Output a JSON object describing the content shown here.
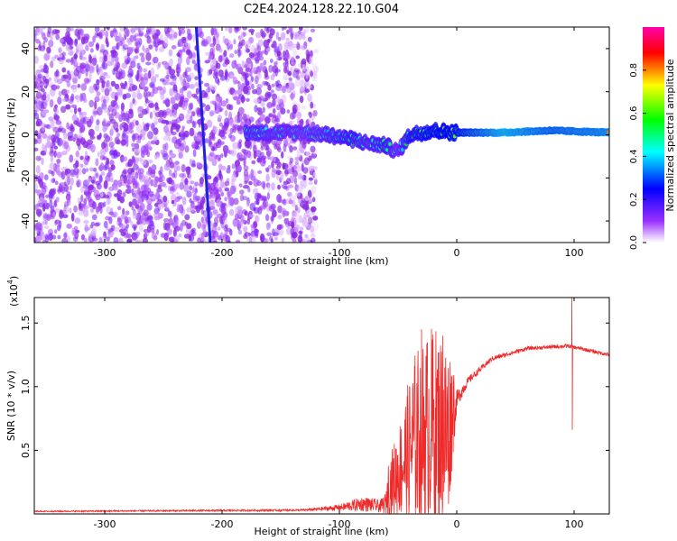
{
  "title": "C2E4.2024.128.22.10.G04",
  "chart_data": [
    {
      "type": "heatmap",
      "xlabel": "Height of straight line (km)",
      "ylabel": "Frequency (Hz)",
      "xlim": [
        -360,
        130
      ],
      "ylim": [
        -50,
        50
      ],
      "xticks": [
        -300,
        -200,
        -100,
        0,
        100
      ],
      "xtick_labels": [
        "-300",
        "-200",
        "-100",
        "0",
        "100"
      ],
      "yticks": [
        -40,
        -20,
        0,
        20,
        40
      ],
      "ytick_labels": [
        "-40",
        "-20",
        "0",
        "20",
        "40"
      ],
      "colorbar": {
        "label": "Normalized spectral amplitude",
        "range": [
          0,
          1
        ],
        "ticks": [
          0.0,
          0.2,
          0.4,
          0.6,
          0.8
        ],
        "tick_labels": [
          "0.0",
          "0.2",
          "0.4",
          "0.6",
          "0.8"
        ],
        "colors": [
          "#ffffff",
          "#9b30ff",
          "#0000ff",
          "#00ffff",
          "#00ff00",
          "#ffff00",
          "#ff0000",
          "#ff00aa"
        ]
      },
      "noise_region": {
        "x": [
          -360,
          -120
        ],
        "y": [
          -50,
          50
        ],
        "level": 0.12
      },
      "signal_track": [
        {
          "x": -180,
          "y": 1,
          "a": 0.45
        },
        {
          "x": -130,
          "y": 1,
          "a": 0.4
        },
        {
          "x": -110,
          "y": 0,
          "a": 0.45
        },
        {
          "x": -90,
          "y": -2,
          "a": 0.5
        },
        {
          "x": -75,
          "y": -4,
          "a": 0.45
        },
        {
          "x": -60,
          "y": -5,
          "a": 0.5
        },
        {
          "x": -50,
          "y": -8,
          "a": 0.4
        },
        {
          "x": -40,
          "y": 0,
          "a": 0.55
        },
        {
          "x": -20,
          "y": 2,
          "a": 0.6
        },
        {
          "x": 0,
          "y": 1,
          "a": 0.65
        },
        {
          "x": 40,
          "y": 1,
          "a": 0.85
        },
        {
          "x": 80,
          "y": 2,
          "a": 0.75
        },
        {
          "x": 130,
          "y": 1,
          "a": 0.8
        }
      ],
      "stripe": {
        "x": [
          -222,
          -210
        ],
        "y": [
          50,
          -50
        ]
      }
    },
    {
      "type": "line",
      "xlabel": "Height of straight line (km)",
      "ylabel": "SNR (10 * v/v)",
      "yscale_label": "(x10",
      "yscale_exp": "4",
      "yscale_close": ")",
      "xlim": [
        -360,
        130
      ],
      "ylim": [
        0,
        1.7
      ],
      "xticks": [
        -300,
        -200,
        -100,
        0,
        100
      ],
      "xtick_labels": [
        "-300",
        "-200",
        "-100",
        "0",
        "100"
      ],
      "yticks": [
        0.5,
        1.0,
        1.5
      ],
      "ytick_labels": [
        "0.5",
        "1.0",
        "1.5"
      ],
      "color": "#ee2a2a",
      "envelope": [
        {
          "x": -360,
          "base": 0.02,
          "amp": 0.01
        },
        {
          "x": -130,
          "base": 0.03,
          "amp": 0.015
        },
        {
          "x": -100,
          "base": 0.05,
          "amp": 0.05
        },
        {
          "x": -80,
          "base": 0.08,
          "amp": 0.12
        },
        {
          "x": -65,
          "base": 0.06,
          "amp": 0.1
        },
        {
          "x": -50,
          "base": 0.15,
          "amp": 0.35
        },
        {
          "x": -35,
          "base": 0.25,
          "amp": 0.7
        },
        {
          "x": -20,
          "base": 0.3,
          "amp": 0.8
        },
        {
          "x": -8,
          "base": 0.25,
          "amp": 0.75
        },
        {
          "x": 0,
          "base": 0.9,
          "amp": 0.15
        },
        {
          "x": 10,
          "base": 1.05,
          "amp": 0.06
        },
        {
          "x": 30,
          "base": 1.22,
          "amp": 0.04
        },
        {
          "x": 60,
          "base": 1.3,
          "amp": 0.03
        },
        {
          "x": 95,
          "base": 1.32,
          "amp": 0.03
        },
        {
          "x": 110,
          "base": 1.29,
          "amp": 0.03
        },
        {
          "x": 130,
          "base": 1.25,
          "amp": 0.03
        }
      ],
      "spikes": [
        {
          "x": 98,
          "y": 1.7
        },
        {
          "x": 98.5,
          "y": 0.66
        },
        {
          "x": -30,
          "y": 1.45
        },
        {
          "x": -12,
          "y": 1.4
        },
        {
          "x": -7,
          "y": 0.08
        }
      ]
    }
  ]
}
